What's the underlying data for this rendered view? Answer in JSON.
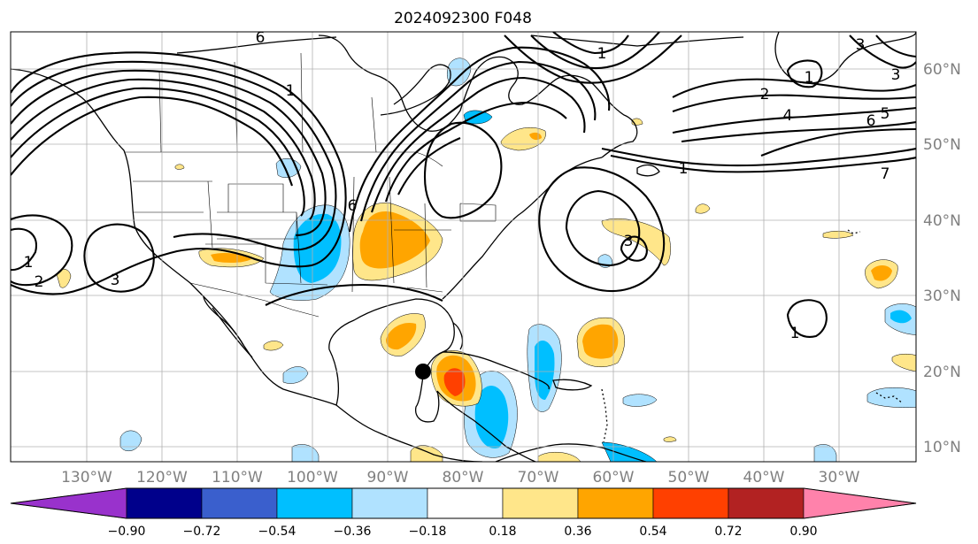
{
  "title": "2024092300 F048",
  "longitude_labels": [
    "130°W",
    "120°W",
    "110°W",
    "100°W",
    "90°W",
    "80°W",
    "70°W",
    "60°W",
    "50°W",
    "40°W",
    "30°W"
  ],
  "latitude_labels": [
    "60°N",
    "50°N",
    "40°N",
    "30°N",
    "20°N",
    "10°N"
  ],
  "colorbar": {
    "tick_labels": [
      "−0.90",
      "−0.72",
      "−0.54",
      "−0.36",
      "−0.18",
      "0.18",
      "0.36",
      "0.54",
      "0.72",
      "0.90"
    ],
    "colors": [
      "#9932cc",
      "#00008b",
      "#3a5fcd",
      "#00bfff",
      "#b0e2ff",
      "#ffffff",
      "#ffe68a",
      "#ffa500",
      "#ff4000",
      "#b22222",
      "#ff82ab"
    ]
  },
  "contour_labels": [
    "6",
    "1",
    "6",
    "1",
    "2",
    "3",
    "1",
    "3",
    "3",
    "1",
    "2",
    "4",
    "5",
    "6",
    "7",
    "1",
    "1",
    "3"
  ],
  "marker": "storm-center-dot"
}
